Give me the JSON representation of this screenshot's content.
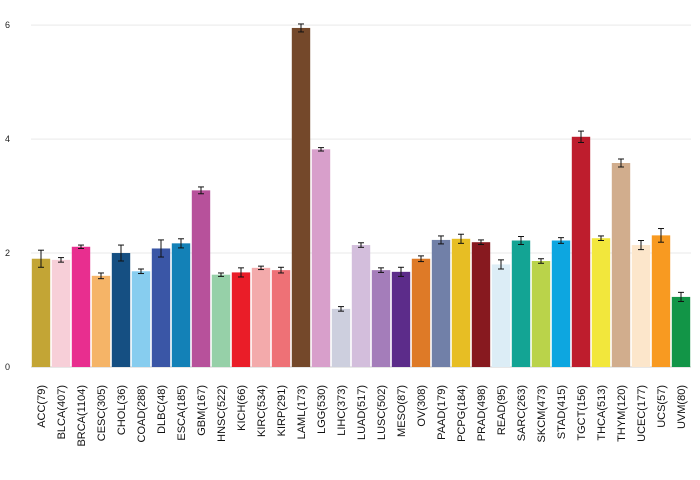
{
  "chart_data": {
    "type": "bar",
    "title": "",
    "xlabel": "",
    "ylabel": "",
    "ylim": [
      0,
      6.3
    ],
    "yticks": [
      0,
      2,
      4,
      6
    ],
    "grid": true,
    "categories": [
      "ACC(79)",
      "BLCA(407)",
      "BRCA(1104)",
      "CESC(305)",
      "CHOL(36)",
      "COAD(288)",
      "DLBC(48)",
      "ESCA(185)",
      "GBM(167)",
      "HNSC(522)",
      "KICH(66)",
      "KIRC(534)",
      "KIRP(291)",
      "LAML(173)",
      "LGG(530)",
      "LIHC(373)",
      "LUAD(517)",
      "LUSC(502)",
      "MESO(87)",
      "OV(308)",
      "PAAD(179)",
      "PCPG(184)",
      "PRAD(498)",
      "READ(95)",
      "SARC(263)",
      "SKCM(473)",
      "STAD(415)",
      "TGCT(156)",
      "THCA(513)",
      "THYM(120)",
      "UCEC(177)",
      "UCS(57)",
      "UVM(80)"
    ],
    "values": [
      1.9,
      1.88,
      2.11,
      1.6,
      2.0,
      1.68,
      2.08,
      2.17,
      3.1,
      1.62,
      1.66,
      1.74,
      1.7,
      5.95,
      3.82,
      1.02,
      2.14,
      1.7,
      1.67,
      1.9,
      2.23,
      2.25,
      2.19,
      1.8,
      2.22,
      1.86,
      2.22,
      4.04,
      2.26,
      3.58,
      2.14,
      2.31,
      1.23
    ],
    "errors": [
      0.15,
      0.04,
      0.03,
      0.05,
      0.14,
      0.04,
      0.15,
      0.08,
      0.06,
      0.03,
      0.08,
      0.03,
      0.05,
      0.07,
      0.03,
      0.04,
      0.04,
      0.04,
      0.08,
      0.05,
      0.07,
      0.08,
      0.04,
      0.08,
      0.07,
      0.04,
      0.05,
      0.1,
      0.04,
      0.07,
      0.08,
      0.12,
      0.08
    ],
    "colors": [
      "#C3A535",
      "#F7CFD8",
      "#E82E8F",
      "#F5B467",
      "#154F82",
      "#87CDEF",
      "#3A56A6",
      "#1381B7",
      "#B7519B",
      "#96D0A8",
      "#EA1D28",
      "#F3AAAB",
      "#EE7176",
      "#74482A",
      "#D89FCB",
      "#CDCFDE",
      "#D3BEDC",
      "#A47DBA",
      "#5C2C8A",
      "#DE7A27",
      "#7180A8",
      "#E7BE24",
      "#87191F",
      "#DCEDF6",
      "#13A494",
      "#BAD34A",
      "#0DA6E0",
      "#BE1D2D",
      "#F2E73C",
      "#D1AD8D",
      "#FCE6CB",
      "#F89A21",
      "#129547"
    ]
  }
}
